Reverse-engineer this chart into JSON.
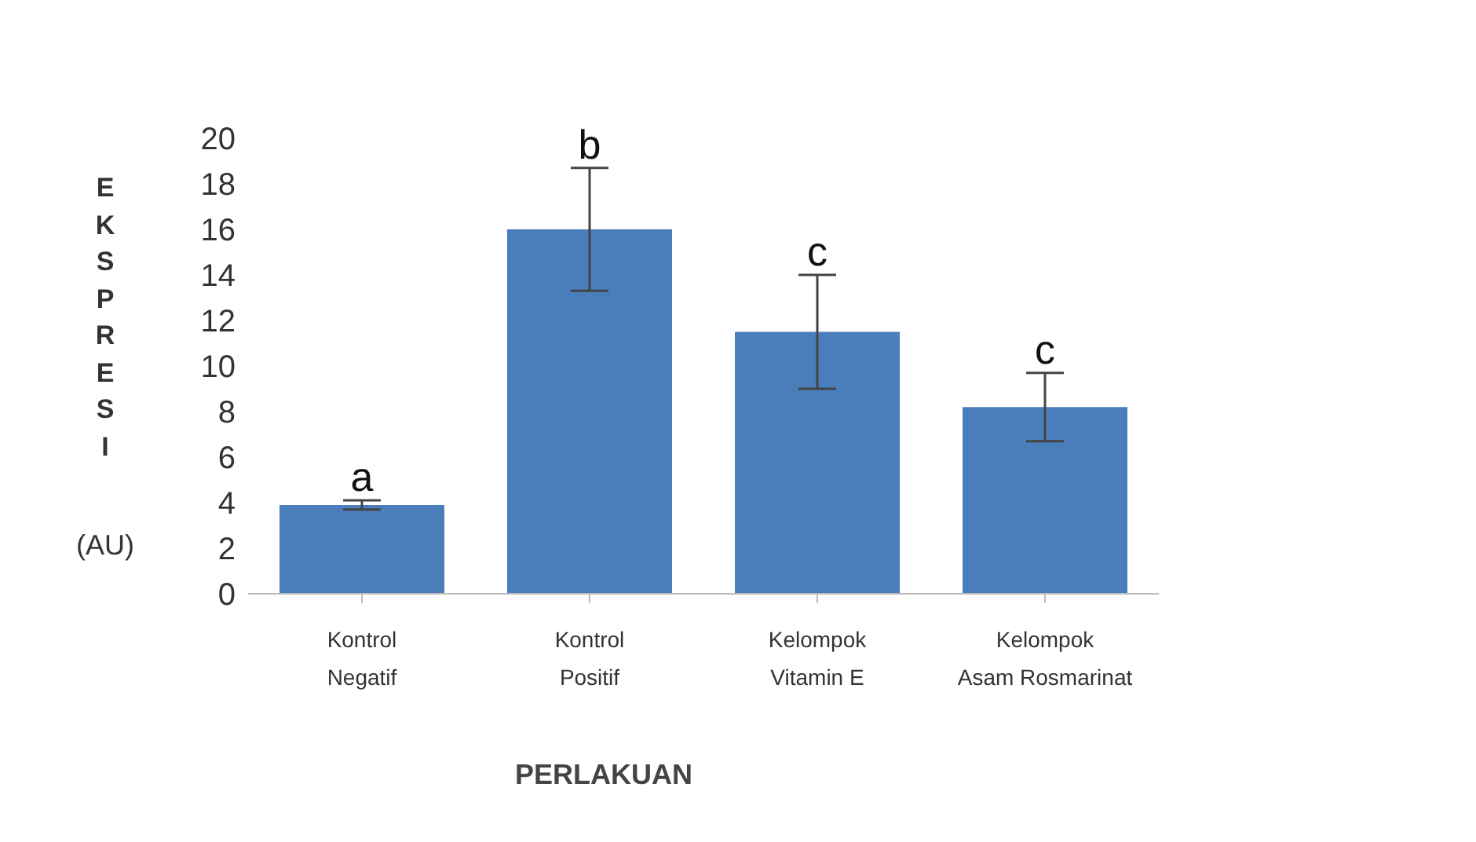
{
  "chart_data": {
    "type": "bar",
    "xlabel": "PERLAKUAN",
    "ylabel": "EKSPRESI (AU)",
    "categories": [
      "Kontrol Negatif",
      "Kontrol Positif",
      "Kelompok Vitamin E",
      "Kelompok Asam Rosmarinat"
    ],
    "values": [
      3.9,
      16,
      11.5,
      8.2
    ],
    "errors": [
      0.2,
      2.7,
      2.5,
      1.5
    ],
    "color": "#4a7ebb",
    "ylim": [
      0,
      20
    ],
    "yticks": [
      0,
      2,
      4,
      6,
      8,
      10,
      12,
      14,
      16,
      18,
      20
    ],
    "grid": false,
    "legend": false,
    "annotations": [
      {
        "text": "a",
        "x": "Kontrol Negatif",
        "y": 4.1
      },
      {
        "text": "b",
        "x": "Kontrol Positif",
        "y": 18.7
      },
      {
        "text": "c",
        "x": "Kelompok Vitamin E",
        "y": 14
      },
      {
        "text": "c",
        "x": "Kelompok Asam Rosmarinat",
        "y": 9.7
      }
    ]
  }
}
